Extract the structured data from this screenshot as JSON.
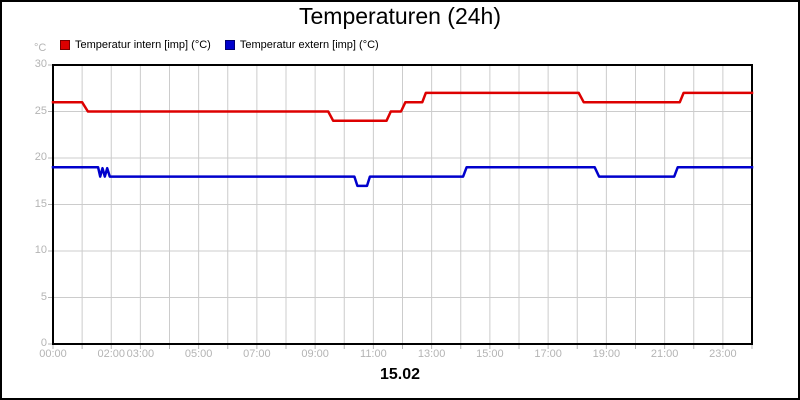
{
  "title": "Temperaturen (24h)",
  "legend": {
    "items": [
      {
        "label": "Temperatur intern [imp] (°C)",
        "color": "#dd0000"
      },
      {
        "label": "Temperatur extern [imp] (°C)",
        "color": "#0000cc"
      }
    ]
  },
  "y_axis_unit": "°C",
  "date_label": "15.02",
  "chart_data": {
    "type": "line",
    "title": "Temperaturen (24h)",
    "ylabel": "°C",
    "xlim": [
      0,
      24
    ],
    "ylim": [
      0,
      30
    ],
    "grid": {
      "x_step_hours": 1,
      "y_step": 5,
      "color": "#cccccc"
    },
    "axis_color": "#000000",
    "tick_label_color": "#b4b4b4",
    "legend_position": "top-left",
    "x_ticks": [
      {
        "label": "00:00",
        "hour": 0
      },
      {
        "label": "02:00",
        "hour": 2
      },
      {
        "label": "03:00",
        "hour": 3
      },
      {
        "label": "05:00",
        "hour": 5
      },
      {
        "label": "07:00",
        "hour": 7
      },
      {
        "label": "09:00",
        "hour": 9
      },
      {
        "label": "11:00",
        "hour": 11
      },
      {
        "label": "13:00",
        "hour": 13
      },
      {
        "label": "15:00",
        "hour": 15
      },
      {
        "label": "17:00",
        "hour": 17
      },
      {
        "label": "19:00",
        "hour": 19
      },
      {
        "label": "21:00",
        "hour": 21
      },
      {
        "label": "23:00",
        "hour": 23
      }
    ],
    "y_ticks": [
      30,
      25,
      20,
      15,
      10,
      5,
      0
    ],
    "series": [
      {
        "name": "Temperatur intern [imp] (°C)",
        "color": "#dd0000",
        "points": [
          [
            0,
            26
          ],
          [
            1.0,
            26
          ],
          [
            1.2,
            25
          ],
          [
            9.45,
            25
          ],
          [
            9.62,
            24
          ],
          [
            11.45,
            24
          ],
          [
            11.6,
            25
          ],
          [
            11.95,
            25
          ],
          [
            12.1,
            26
          ],
          [
            12.68,
            26
          ],
          [
            12.8,
            27
          ],
          [
            18.05,
            27
          ],
          [
            18.22,
            26
          ],
          [
            21.52,
            26
          ],
          [
            21.65,
            27
          ],
          [
            24,
            27
          ]
        ]
      },
      {
        "name": "Temperatur extern [imp] (°C)",
        "color": "#0000cc",
        "points": [
          [
            0,
            19
          ],
          [
            1.55,
            19
          ],
          [
            1.62,
            18
          ],
          [
            1.7,
            18.9
          ],
          [
            1.78,
            18
          ],
          [
            1.86,
            18.9
          ],
          [
            1.95,
            18
          ],
          [
            10.35,
            18
          ],
          [
            10.45,
            17
          ],
          [
            10.78,
            17
          ],
          [
            10.88,
            18
          ],
          [
            14.08,
            18
          ],
          [
            14.2,
            19
          ],
          [
            18.6,
            19
          ],
          [
            18.75,
            18
          ],
          [
            21.33,
            18
          ],
          [
            21.45,
            19
          ],
          [
            24,
            19
          ]
        ]
      }
    ],
    "date_label": "15.02"
  }
}
